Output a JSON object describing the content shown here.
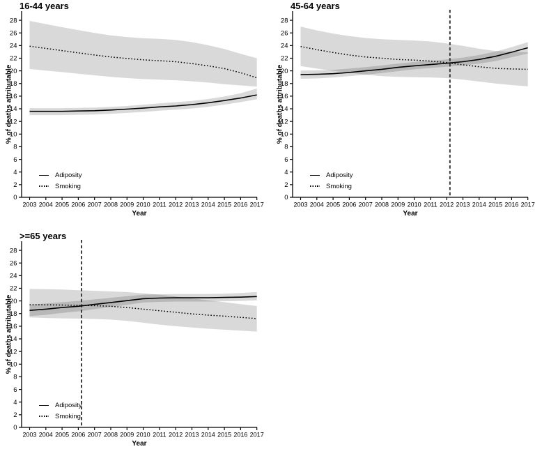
{
  "figure": {
    "background": "#ffffff",
    "text_color": "#000000"
  },
  "chart_data": [
    {
      "type": "line",
      "title": "16-44 years",
      "xlabel": "Year",
      "ylabel": "% of deaths attributable",
      "x": [
        2003,
        2004,
        2005,
        2006,
        2007,
        2008,
        2009,
        2010,
        2011,
        2012,
        2013,
        2014,
        2015,
        2016,
        2017
      ],
      "yticks": [
        0,
        2,
        4,
        6,
        8,
        10,
        12,
        14,
        16,
        18,
        20,
        22,
        24,
        26,
        28
      ],
      "ylim": [
        0,
        29
      ],
      "grid": false,
      "legend_position": "inside-lower-left",
      "vline_x": null,
      "series": [
        {
          "name": "Adiposity",
          "style": "solid",
          "values": [
            13.6,
            13.6,
            13.6,
            13.65,
            13.7,
            13.8,
            13.95,
            14.1,
            14.3,
            14.45,
            14.65,
            14.95,
            15.3,
            15.7,
            16.2
          ],
          "band_lower": [
            13.0,
            13.0,
            13.0,
            13.05,
            13.1,
            13.2,
            13.35,
            13.5,
            13.7,
            13.85,
            14.05,
            14.3,
            14.65,
            15.05,
            15.5
          ],
          "band_upper": [
            14.1,
            14.1,
            14.1,
            14.15,
            14.2,
            14.3,
            14.45,
            14.65,
            14.85,
            15.05,
            15.25,
            15.55,
            15.95,
            16.45,
            17.2
          ]
        },
        {
          "name": "Smoking",
          "style": "dotted",
          "values": [
            23.9,
            23.55,
            23.2,
            22.85,
            22.5,
            22.2,
            21.95,
            21.75,
            21.6,
            21.45,
            21.15,
            20.8,
            20.35,
            19.7,
            18.9
          ],
          "band_lower": [
            20.3,
            20.05,
            19.8,
            19.55,
            19.3,
            19.05,
            18.85,
            18.7,
            18.6,
            18.5,
            18.35,
            18.15,
            17.9,
            17.7,
            17.5
          ],
          "band_upper": [
            27.9,
            27.4,
            26.9,
            26.45,
            26.0,
            25.6,
            25.35,
            25.15,
            25.05,
            24.9,
            24.55,
            24.05,
            23.45,
            22.7,
            22.0
          ]
        }
      ],
      "colors": {
        "line": "#000000",
        "band_fill": "rgba(0,0,0,0.15)",
        "vline": "#333333"
      }
    },
    {
      "type": "line",
      "title": "45-64 years",
      "xlabel": "Year",
      "ylabel": "% of deaths attributable",
      "x": [
        2003,
        2004,
        2005,
        2006,
        2007,
        2008,
        2009,
        2010,
        2011,
        2012,
        2013,
        2014,
        2015,
        2016,
        2017
      ],
      "yticks": [
        0,
        2,
        4,
        6,
        8,
        10,
        12,
        14,
        16,
        18,
        20,
        22,
        24,
        26,
        28
      ],
      "ylim": [
        0,
        29
      ],
      "grid": false,
      "legend_position": "inside-lower-left",
      "vline_x": 2012.2,
      "series": [
        {
          "name": "Adiposity",
          "style": "solid",
          "values": [
            19.4,
            19.45,
            19.55,
            19.75,
            20.0,
            20.25,
            20.55,
            20.8,
            21.0,
            21.2,
            21.45,
            21.8,
            22.3,
            22.95,
            23.65
          ],
          "band_lower": [
            18.75,
            18.8,
            18.95,
            19.15,
            19.4,
            19.65,
            19.95,
            20.25,
            20.45,
            20.65,
            20.85,
            21.15,
            21.55,
            22.15,
            22.75
          ],
          "band_upper": [
            20.05,
            20.1,
            20.15,
            20.35,
            20.6,
            20.85,
            21.15,
            21.4,
            21.6,
            21.8,
            22.1,
            22.5,
            23.05,
            23.75,
            24.55
          ]
        },
        {
          "name": "Smoking",
          "style": "dotted",
          "values": [
            23.85,
            23.35,
            22.9,
            22.5,
            22.2,
            22.0,
            21.8,
            21.7,
            21.55,
            21.3,
            20.95,
            20.65,
            20.4,
            20.3,
            20.25
          ],
          "band_lower": [
            20.75,
            20.35,
            20.0,
            19.7,
            19.4,
            19.15,
            19.05,
            19.0,
            18.95,
            18.85,
            18.6,
            18.3,
            18.0,
            17.75,
            17.55
          ],
          "band_upper": [
            27.0,
            26.4,
            25.9,
            25.5,
            25.2,
            25.0,
            24.9,
            24.8,
            24.65,
            24.35,
            23.95,
            23.5,
            23.15,
            23.0,
            22.95
          ]
        }
      ],
      "colors": {
        "line": "#000000",
        "band_fill": "rgba(0,0,0,0.15)",
        "vline": "#333333"
      }
    },
    {
      "type": "line",
      "title": ">=65 years",
      "xlabel": "Year",
      "ylabel": "% of deaths attributable",
      "x": [
        2003,
        2004,
        2005,
        2006,
        2007,
        2008,
        2009,
        2010,
        2011,
        2012,
        2013,
        2014,
        2015,
        2016,
        2017
      ],
      "yticks": [
        0,
        2,
        4,
        6,
        8,
        10,
        12,
        14,
        16,
        18,
        20,
        22,
        24,
        26,
        28
      ],
      "ylim": [
        0,
        29
      ],
      "grid": false,
      "legend_position": "inside-lower-left",
      "vline_x": 2006.2,
      "series": [
        {
          "name": "Adiposity",
          "style": "solid",
          "values": [
            18.5,
            18.7,
            18.95,
            19.15,
            19.45,
            19.75,
            20.05,
            20.35,
            20.45,
            20.5,
            20.5,
            20.5,
            20.55,
            20.6,
            20.7
          ],
          "band_lower": [
            17.6,
            17.8,
            18.1,
            18.35,
            18.7,
            19.05,
            19.4,
            19.75,
            19.85,
            19.9,
            19.9,
            19.9,
            19.95,
            20.0,
            20.1
          ],
          "band_upper": [
            19.4,
            19.6,
            19.8,
            20.0,
            20.25,
            20.5,
            20.75,
            21.0,
            21.05,
            21.1,
            21.1,
            21.1,
            21.15,
            21.25,
            21.4
          ]
        },
        {
          "name": "Smoking",
          "style": "dotted",
          "values": [
            19.4,
            19.38,
            19.35,
            19.3,
            19.25,
            19.15,
            18.95,
            18.7,
            18.45,
            18.2,
            17.95,
            17.75,
            17.6,
            17.4,
            17.2
          ],
          "band_lower": [
            17.4,
            17.3,
            17.25,
            17.2,
            17.15,
            17.05,
            16.85,
            16.55,
            16.25,
            16.0,
            15.8,
            15.6,
            15.45,
            15.3,
            15.15
          ],
          "band_upper": [
            21.9,
            21.85,
            21.8,
            21.7,
            21.6,
            21.5,
            21.4,
            21.2,
            21.0,
            20.7,
            20.4,
            20.1,
            19.8,
            19.5,
            19.2
          ]
        }
      ],
      "colors": {
        "line": "#000000",
        "band_fill": "rgba(0,0,0,0.15)",
        "vline": "#333333"
      }
    }
  ]
}
